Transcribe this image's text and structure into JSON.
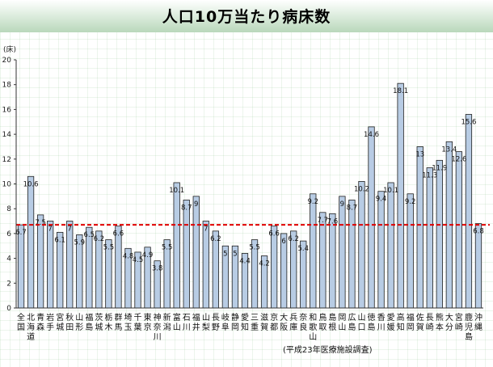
{
  "chart_data": {
    "type": "bar",
    "title": "人口10万当たり病床数",
    "ylabel": "(床)",
    "ylim": [
      0,
      20
    ],
    "yticks": [
      0,
      2,
      4,
      6,
      8,
      10,
      12,
      14,
      16,
      18,
      20
    ],
    "reference_line": {
      "value": 6.7,
      "style": "red dashed"
    },
    "source_note": "(平成23年医療施設調査)",
    "bar_color": "#b8cce4",
    "bar_stroke": "#1f1f1f",
    "ref_line_color": "#e00000",
    "categories": [
      "全国",
      "北海道",
      "青森",
      "岩手",
      "宮城",
      "秋田",
      "山形",
      "福島",
      "茨城",
      "栃木",
      "群馬",
      "埼玉",
      "千葉",
      "東京",
      "神奈川",
      "新潟",
      "富山",
      "石川",
      "福井",
      "山梨",
      "長野",
      "岐阜",
      "静岡",
      "愛知",
      "三重",
      "滋賀",
      "京都",
      "大阪",
      "兵庫",
      "奈良",
      "和歌山",
      "鳥取",
      "島根",
      "岡山",
      "広島",
      "山口",
      "徳島",
      "香川",
      "愛媛",
      "高知",
      "福岡",
      "佐賀",
      "長崎",
      "熊本",
      "大分",
      "宮崎",
      "鹿児島",
      "沖縄"
    ],
    "values": [
      6.7,
      10.6,
      7.5,
      7,
      6.1,
      7,
      5.9,
      6.5,
      6.2,
      5.5,
      6.6,
      4.8,
      4.5,
      4.9,
      3.8,
      5.5,
      10.1,
      8.7,
      9,
      7,
      6.2,
      5,
      5,
      4.4,
      5.5,
      4.2,
      6.6,
      6,
      6.2,
      5.4,
      9.2,
      7.7,
      7.6,
      9,
      8.7,
      10.2,
      14.6,
      9.4,
      10.1,
      18.1,
      9.2,
      13,
      11.3,
      11.9,
      13.4,
      12.6,
      15.6,
      6.8
    ],
    "labels": [
      "6.7",
      "10.6",
      "7.5",
      "7",
      "6.1",
      "7",
      "5.9",
      "6.5",
      "6.2",
      "5.5",
      "6.6",
      "4.8",
      "4.5",
      "4.9",
      "3.8",
      "5.5",
      "10.1",
      "8.7",
      "9",
      "7",
      "6.2",
      "5",
      "5",
      "4.4",
      "5.5",
      "4.2",
      "6.6",
      "6",
      "6.2",
      "5.4",
      "9.2",
      "7.7",
      "7.6",
      "9",
      "8.7",
      "10.2",
      "14.6",
      "9.4",
      "10.1",
      "18.1",
      "9.2",
      "13",
      "11.3",
      "11.9",
      "13.4",
      "12.6",
      "15.6",
      "6.8"
    ]
  }
}
